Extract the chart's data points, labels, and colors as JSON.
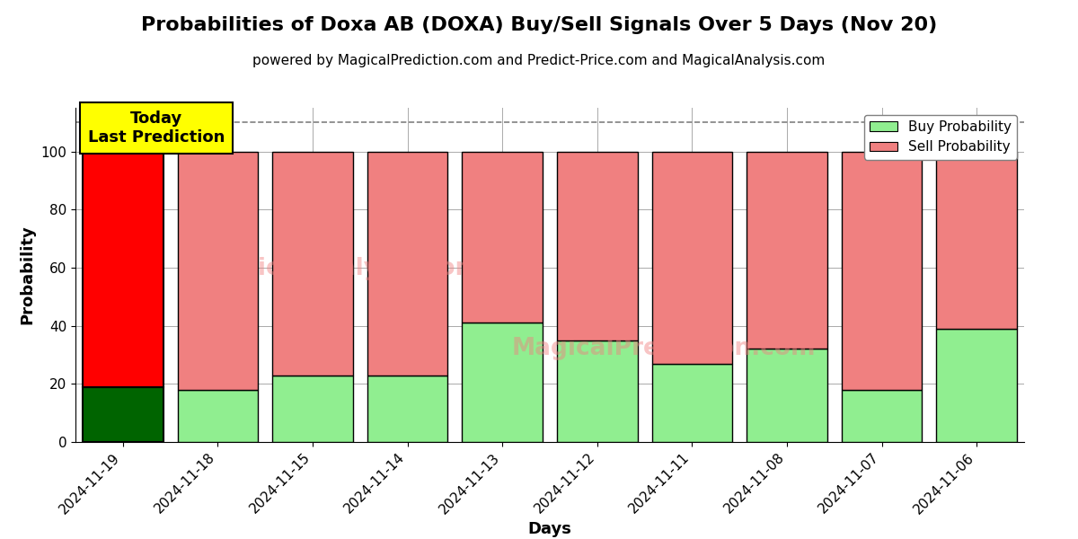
{
  "title": "Probabilities of Doxa AB (DOXA) Buy/Sell Signals Over 5 Days (Nov 20)",
  "subtitle": "powered by MagicalPrediction.com and Predict-Price.com and MagicalAnalysis.com",
  "xlabel": "Days",
  "ylabel": "Probability",
  "categories": [
    "2024-11-19",
    "2024-11-18",
    "2024-11-15",
    "2024-11-14",
    "2024-11-13",
    "2024-11-12",
    "2024-11-11",
    "2024-11-08",
    "2024-11-07",
    "2024-11-06"
  ],
  "buy_probs": [
    19,
    18,
    23,
    23,
    41,
    35,
    27,
    32,
    18,
    39
  ],
  "sell_probs": [
    81,
    82,
    77,
    77,
    59,
    65,
    73,
    68,
    82,
    61
  ],
  "today_bar_buy_color": "#006400",
  "today_bar_sell_color": "#FF0000",
  "other_bar_buy_color": "#90EE90",
  "other_bar_sell_color": "#F08080",
  "bar_edge_color": "#000000",
  "legend_buy_color": "#90EE90",
  "legend_sell_color": "#F08080",
  "dashed_line_y": 110,
  "ylim": [
    0,
    115
  ],
  "yticks": [
    0,
    20,
    40,
    60,
    80,
    100
  ],
  "today_annotation": "Today\nLast Prediction",
  "annotation_bg_color": "#FFFF00",
  "title_fontsize": 16,
  "subtitle_fontsize": 11,
  "axis_label_fontsize": 13,
  "tick_fontsize": 11,
  "annotation_fontsize": 13,
  "legend_fontsize": 11,
  "background_color": "#ffffff",
  "grid_color": "#aaaaaa",
  "bar_width": 0.85
}
